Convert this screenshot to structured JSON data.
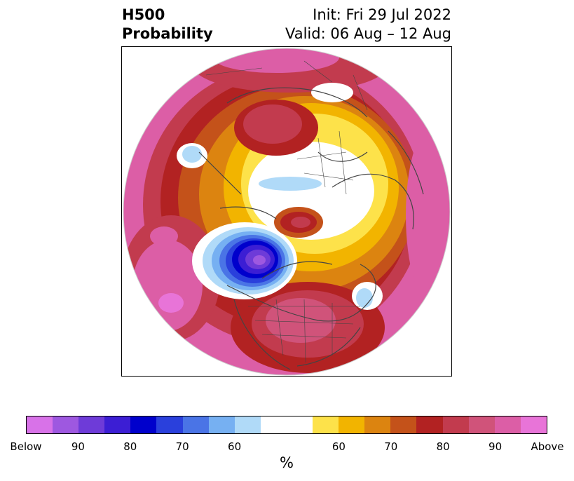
{
  "title": {
    "left_line1": "H500",
    "left_line2": "Probability",
    "right_line1": "Init: Fri 29 Jul 2022",
    "right_line2": "Valid: 06 Aug – 12 Aug"
  },
  "colorbar": {
    "units": "%",
    "colors": [
      "#d872e8",
      "#9e58e0",
      "#6e3bd8",
      "#3c1ed4",
      "#0000cc",
      "#2a40dc",
      "#4a74e6",
      "#76b0f2",
      "#b0daf8",
      "#ffffff",
      "#ffffff",
      "#fde24a",
      "#f2b400",
      "#dc8410",
      "#c4521a",
      "#b22222",
      "#c23b4e",
      "#d0537a",
      "#dc5ea6",
      "#e874d8"
    ],
    "tick_labels": [
      "Below",
      "90",
      "80",
      "70",
      "60",
      "60",
      "70",
      "80",
      "90",
      "Above"
    ]
  },
  "palette": {
    "land_lines": "#444444",
    "circle_edge": "#aaaaaa"
  }
}
